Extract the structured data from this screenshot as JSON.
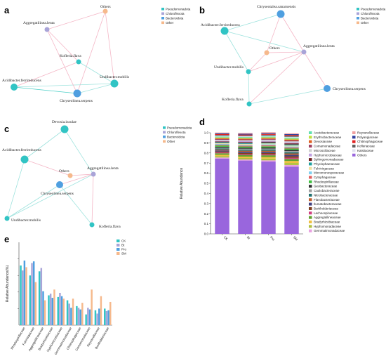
{
  "panels": {
    "a": "a",
    "b": "b",
    "c": "c",
    "d": "d",
    "e": "e"
  },
  "network_legend": [
    "Pseudomonadota",
    "Chloroflexota",
    "Bacteroidota",
    "Other"
  ],
  "colors": {
    "Pseudomonadota": "#31c4c4",
    "Chloroflexota": "#a9a4d8",
    "Bacteroidota": "#4f9fe0",
    "Other": "#f6b98c"
  },
  "chart_data": [
    {
      "type": "network",
      "panel": "a",
      "nodes": [
        {
          "id": "Others",
          "label": "Others",
          "group": "Other"
        },
        {
          "id": "Aggregatilinea.lenta",
          "label": "Aggregatilinea.lenta",
          "group": "Chloroflexota"
        },
        {
          "id": "Kofleria.flava",
          "label": "Kofleria.flava",
          "group": "Pseudomonadota"
        },
        {
          "id": "Acidibacter.ferrireducens",
          "label": "Acidibacter.ferrireducens",
          "group": "Pseudomonadota"
        },
        {
          "id": "Chryseolinea.serpens",
          "label": "Chryseolinea.serpens",
          "group": "Bacteroidota"
        },
        {
          "id": "Undibacter.mobilis",
          "label": "Undibacter.mobilis",
          "group": "Pseudomonadota"
        }
      ]
    },
    {
      "type": "network",
      "panel": "b",
      "nodes": [
        {
          "id": "Chryseotalea.sanaruensis",
          "label": "Chryseotalea.sanaruensis",
          "group": "Bacteroidota"
        },
        {
          "id": "Acidibacter.ferrireducens",
          "label": "Acidibacter.ferrireducens",
          "group": "Pseudomonadota"
        },
        {
          "id": "Others",
          "label": "Others",
          "group": "Other"
        },
        {
          "id": "Aggregatilinea.lenta",
          "label": "Aggregatilinea.lenta",
          "group": "Chloroflexota"
        },
        {
          "id": "Undibacter.mobilis",
          "label": "Undibacter.mobilis",
          "group": "Pseudomonadota"
        },
        {
          "id": "Chryseolinea.serpens",
          "label": "Chryseolinea.serpens",
          "group": "Bacteroidota"
        },
        {
          "id": "Kofleria.flava",
          "label": "Kofleria.flava",
          "group": "Pseudomonadota"
        }
      ]
    },
    {
      "type": "network",
      "panel": "c",
      "nodes": [
        {
          "id": "Devosia.insulae",
          "label": "Devosia.insulae",
          "group": "Pseudomonadota"
        },
        {
          "id": "Acidibacter.ferrireducens",
          "label": "Acidibacter.ferrireducens",
          "group": "Pseudomonadota"
        },
        {
          "id": "Others",
          "label": "Others",
          "group": "Other"
        },
        {
          "id": "Aggregatilinea.lenta",
          "label": "Aggregatilinea.lenta",
          "group": "Chloroflexota"
        },
        {
          "id": "Chryseolinea.serpens",
          "label": "Chryseolinea.serpens",
          "group": "Bacteroidota"
        },
        {
          "id": "Undibacter.mobilis",
          "label": "Undibacter.mobilis",
          "group": "Pseudomonadota"
        },
        {
          "id": "Kofleria.flava",
          "label": "Kofleria.flava",
          "group": "Pseudomonadota"
        }
      ]
    },
    {
      "type": "bar",
      "stacked": true,
      "panel": "d",
      "categories": [
        "CK",
        "Bt",
        "Pro",
        "SM"
      ],
      "ylabel": "Relative Abundance",
      "ylim": [
        0,
        1.0
      ],
      "yticks": [
        "0.0",
        "0.1",
        "0.2",
        "0.3",
        "0.4",
        "0.5",
        "0.6",
        "0.7",
        "0.8",
        "0.9",
        "1.0"
      ],
      "series": [
        {
          "name": "Others",
          "color": "#9966dd",
          "values": [
            0.745,
            0.725,
            0.715,
            0.665
          ]
        },
        {
          "name": "Gemmatimonadaceae",
          "color": "#e8a0e0",
          "values": [
            0.01,
            0.01,
            0.012,
            0.016
          ]
        },
        {
          "name": "Hyphomonadaceae",
          "color": "#b0c040",
          "values": [
            0.015,
            0.015,
            0.018,
            0.02
          ]
        },
        {
          "name": "Bradyrhizobiaceae",
          "color": "#f0c040",
          "values": [
            0.012,
            0.014,
            0.015,
            0.02
          ]
        },
        {
          "name": "Aggregatilineaceae",
          "color": "#60a030",
          "values": [
            0.015,
            0.016,
            0.017,
            0.02
          ]
        },
        {
          "name": "Lachnospiraceae",
          "color": "#d04080",
          "values": [
            0.008,
            0.008,
            0.01,
            0.012
          ]
        },
        {
          "name": "Burkholderiaceae",
          "color": "#804020",
          "values": [
            0.01,
            0.012,
            0.012,
            0.015
          ]
        },
        {
          "name": "Ilumatobacteraceae",
          "color": "#404080",
          "values": [
            0.01,
            0.012,
            0.012,
            0.014
          ]
        },
        {
          "name": "Flavobacteriaceae",
          "color": "#c06030",
          "values": [
            0.009,
            0.01,
            0.011,
            0.013
          ]
        },
        {
          "name": "Nitrobacteraceae",
          "color": "#207070",
          "values": [
            0.01,
            0.01,
            0.012,
            0.012
          ]
        },
        {
          "name": "Caulobacteraceae",
          "color": "#a0a0a0",
          "values": [
            0.008,
            0.01,
            0.01,
            0.012
          ]
        },
        {
          "name": "Geobacteraceae",
          "color": "#303030",
          "values": [
            0.01,
            0.01,
            0.01,
            0.012
          ]
        },
        {
          "name": "Rhodospirillaceae",
          "color": "#40c040",
          "values": [
            0.012,
            0.012,
            0.012,
            0.013
          ]
        },
        {
          "name": "Cytophagaceae",
          "color": "#e06060",
          "values": [
            0.008,
            0.009,
            0.01,
            0.01
          ]
        },
        {
          "name": "Micromonosporaceae",
          "color": "#80d0f0",
          "values": [
            0.008,
            0.008,
            0.009,
            0.01
          ]
        },
        {
          "name": "Fulvivirgaceae",
          "color": "#f0e0a0",
          "values": [
            0.008,
            0.009,
            0.009,
            0.01
          ]
        },
        {
          "name": "Phycisphaeraceae",
          "color": "#20a0a0",
          "values": [
            0.008,
            0.008,
            0.008,
            0.01
          ]
        },
        {
          "name": "Sphingomonadaceae",
          "color": "#702020",
          "values": [
            0.008,
            0.01,
            0.01,
            0.011
          ]
        },
        {
          "name": "Hyphomicrobiaceae",
          "color": "#c0a0e0",
          "values": [
            0.008,
            0.009,
            0.009,
            0.01
          ]
        },
        {
          "name": "Microscillaceae",
          "color": "#d0d0d0",
          "values": [
            0.008,
            0.009,
            0.01,
            0.01
          ]
        },
        {
          "name": "Comamonadaceae",
          "color": "#a04060",
          "values": [
            0.008,
            0.008,
            0.008,
            0.009
          ]
        },
        {
          "name": "Devosiaceae",
          "color": "#e06020",
          "values": [
            0.008,
            0.008,
            0.008,
            0.009
          ]
        },
        {
          "name": "Erythrobacteraceae",
          "color": "#c0e040",
          "values": [
            0.008,
            0.008,
            0.008,
            0.009
          ]
        },
        {
          "name": "Acetobacteraceae",
          "color": "#60e0b0",
          "values": [
            0.008,
            0.008,
            0.008,
            0.009
          ]
        },
        {
          "name": "Kaistiaceae",
          "color": "#e0e0f0",
          "values": [
            0.008,
            0.008,
            0.008,
            0.009
          ]
        },
        {
          "name": "Kofleriaceae",
          "color": "#606060",
          "values": [
            0.008,
            0.008,
            0.009,
            0.009
          ]
        },
        {
          "name": "Chitinophagaceae",
          "color": "#e02020",
          "values": [
            0.008,
            0.008,
            0.008,
            0.009
          ]
        },
        {
          "name": "Polyangiaceae",
          "color": "#3040a0",
          "values": [
            0.008,
            0.008,
            0.008,
            0.008
          ]
        },
        {
          "name": "Reyranellaceae",
          "color": "#f0a0a0",
          "values": [
            0.008,
            0.008,
            0.009,
            0.008
          ]
        }
      ],
      "legend": {
        "col1": [
          "Acetobacteraceae",
          "Erythrobacteraceae",
          "Devosiaceae",
          "Comamonadaceae",
          "Microscillaceae",
          "Hyphomicrobiaceae",
          "Sphingomonadaceae",
          "Phycisphaeraceae",
          "Fulvivirgaceae",
          "Micromonosporaceae",
          "Cytophagaceae",
          "Rhodospirillaceae",
          "Geobacteraceae",
          "Caulobacteraceae",
          "Nitrobacteraceae",
          "Flavobacteriaceae",
          "Ilumatobacteraceae",
          "Burkholderiaceae",
          "Lachnospiraceae",
          "Aggregatilineaceae",
          "Bradyrhizobiaceae",
          "Hyphomonadaceae",
          "Gemmatimonadaceae"
        ],
        "col2": [
          "Reyranellaceae",
          "Polyangiaceae",
          "Chitinophagaceae",
          "Kofleriaceae",
          "Kaistiaceae",
          "Others"
        ]
      }
    },
    {
      "type": "bar",
      "panel": "e",
      "ylabel": "Relative Abundance(%)",
      "categories": [
        "Rhodospirillaceae",
        "Fulvivirgaceae",
        "Aggregatilineaceae",
        "Bradyrhizobiaceae",
        "Hyphomicrobiaceae",
        "Gemmatimonadaceae",
        "Chitinophagaceae",
        "Comamonadaceae",
        "Reyranellaceae",
        "Burkholderiaceae"
      ],
      "ylim": [
        0,
        10
      ],
      "series": [
        {
          "name": "CK",
          "color": "#31c4c4",
          "values": [
            7.2,
            6.0,
            6.5,
            3.6,
            3.4,
            3.0,
            2.3,
            1.3,
            1.8,
            2.0
          ]
        },
        {
          "name": "Bt",
          "color": "#a9a4d8",
          "values": [
            6.6,
            7.5,
            6.9,
            3.8,
            3.9,
            2.6,
            2.1,
            2.1,
            1.4,
            1.7
          ]
        },
        {
          "name": "Pro",
          "color": "#4f9fe0",
          "values": [
            7.8,
            7.7,
            4.1,
            3.3,
            3.5,
            2.1,
            1.9,
            1.9,
            2.0,
            1.8
          ]
        },
        {
          "name": "SM",
          "color": "#f6b98c",
          "values": [
            7.0,
            5.2,
            3.0,
            4.3,
            3.2,
            3.2,
            2.7,
            4.3,
            3.5,
            2.8
          ]
        }
      ]
    }
  ]
}
